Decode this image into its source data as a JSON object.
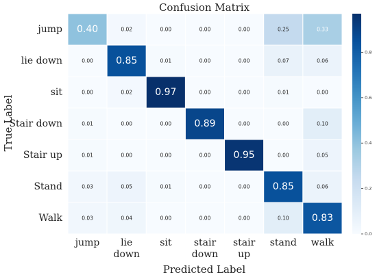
{
  "chart_data": {
    "type": "heatmap",
    "title": "Confusion Matrix",
    "xlabel": "Predicted Label",
    "ylabel": "True Label",
    "x_categories": [
      [
        "jump"
      ],
      [
        "lie",
        "down"
      ],
      [
        "sit"
      ],
      [
        "stair",
        "down"
      ],
      [
        "stair",
        "up"
      ],
      [
        "stand"
      ],
      [
        "walk"
      ]
    ],
    "y_categories": [
      "jump",
      "lie down",
      "sit",
      "Stair down",
      "Stair up",
      "Stand",
      "Walk"
    ],
    "values": [
      [
        0.4,
        0.02,
        0.0,
        0.0,
        0.0,
        0.25,
        0.33
      ],
      [
        0.0,
        0.85,
        0.01,
        0.0,
        0.0,
        0.07,
        0.06
      ],
      [
        0.0,
        0.02,
        0.97,
        0.0,
        0.0,
        0.01,
        0.0
      ],
      [
        0.01,
        0.0,
        0.0,
        0.89,
        0.0,
        0.0,
        0.1
      ],
      [
        0.01,
        0.0,
        0.0,
        0.0,
        0.95,
        0.0,
        0.05
      ],
      [
        0.03,
        0.05,
        0.01,
        0.0,
        0.0,
        0.85,
        0.06
      ],
      [
        0.03,
        0.04,
        0.0,
        0.0,
        0.0,
        0.1,
        0.83
      ]
    ],
    "colorbar": {
      "range": [
        0.0,
        0.97
      ],
      "ticks": [
        0.0,
        0.2,
        0.4,
        0.6,
        0.8
      ],
      "tick_labels": [
        "0.0",
        "0.2",
        "0.4",
        "0.6",
        "0.8"
      ]
    },
    "colors": {
      "low": "#f7fbff",
      "high": "#08306b",
      "text_dark": "#262626",
      "text_light": "#ffffff",
      "cell_border": "#ffffff"
    }
  }
}
